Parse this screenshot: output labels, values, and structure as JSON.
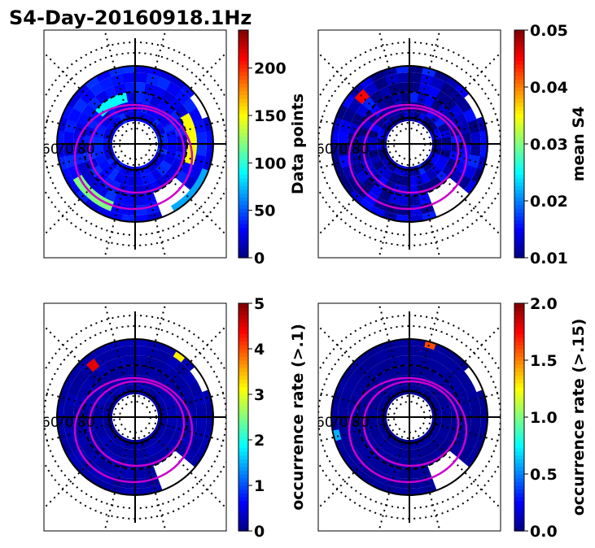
{
  "title": "S4-Day-20160918.1Hz",
  "chart_data": [
    {
      "type": "heatmap",
      "projection": "polar",
      "colormap": "jet",
      "colorbar_label": "Data points",
      "clim": [
        0,
        240
      ],
      "colorbar_ticks": [
        "0",
        "50",
        "100",
        "150",
        "200"
      ],
      "colorbar_tick_values": [
        0,
        50,
        100,
        150,
        200
      ],
      "latitude_labels": [
        "60",
        "70",
        "80"
      ],
      "dominant_value": 30,
      "highlights": [
        {
          "ring": 3,
          "a1": -20,
          "a2": 30,
          "value": 150
        },
        {
          "ring": 4,
          "a1": 210,
          "a2": 250,
          "value": 120
        },
        {
          "ring": 2,
          "a1": 100,
          "a2": 140,
          "value": 90
        },
        {
          "ring": 5,
          "a1": 300,
          "a2": 340,
          "value": 70
        }
      ]
    },
    {
      "type": "heatmap",
      "projection": "polar",
      "colormap": "jet",
      "colorbar_label": "mean S4",
      "clim": [
        0.01,
        0.05
      ],
      "colorbar_ticks": [
        "0.01",
        "0.02",
        "0.03",
        "0.04",
        "0.05"
      ],
      "colorbar_tick_values": [
        0.01,
        0.02,
        0.03,
        0.04,
        0.05
      ],
      "latitude_labels": [
        "60",
        "70",
        "80"
      ],
      "dominant_value": 0.012,
      "highlights": [
        {
          "ring": 4,
          "a1": 130,
          "a2": 140,
          "value": 0.045
        }
      ]
    },
    {
      "type": "heatmap",
      "projection": "polar",
      "colormap": "jet",
      "colorbar_label": "occurrence rate (>.1)",
      "clim": [
        0,
        5
      ],
      "colorbar_ticks": [
        "0",
        "1",
        "2",
        "3",
        "4",
        "5"
      ],
      "colorbar_tick_values": [
        0,
        1,
        2,
        3,
        4,
        5
      ],
      "latitude_labels": [
        "60",
        "70",
        "80"
      ],
      "dominant_value": 0.2,
      "highlights": [
        {
          "ring": 5,
          "a1": 50,
          "a2": 58,
          "value": 3.2
        },
        {
          "ring": 4,
          "a1": 125,
          "a2": 133,
          "value": 4.5
        }
      ]
    },
    {
      "type": "heatmap",
      "projection": "polar",
      "colormap": "jet",
      "colorbar_label": "occurrence rate (>.15)",
      "clim": [
        0,
        2
      ],
      "colorbar_ticks": [
        "0.0",
        "0.5",
        "1.0",
        "1.5",
        "2.0"
      ],
      "colorbar_tick_values": [
        0.0,
        0.5,
        1.0,
        1.5,
        2.0
      ],
      "latitude_labels": [
        "60",
        "70",
        "80"
      ],
      "dominant_value": 0.05,
      "highlights": [
        {
          "ring": 5,
          "a1": 70,
          "a2": 78,
          "value": 1.6
        },
        {
          "ring": 5,
          "a1": 190,
          "a2": 198,
          "value": 0.6
        }
      ]
    }
  ]
}
